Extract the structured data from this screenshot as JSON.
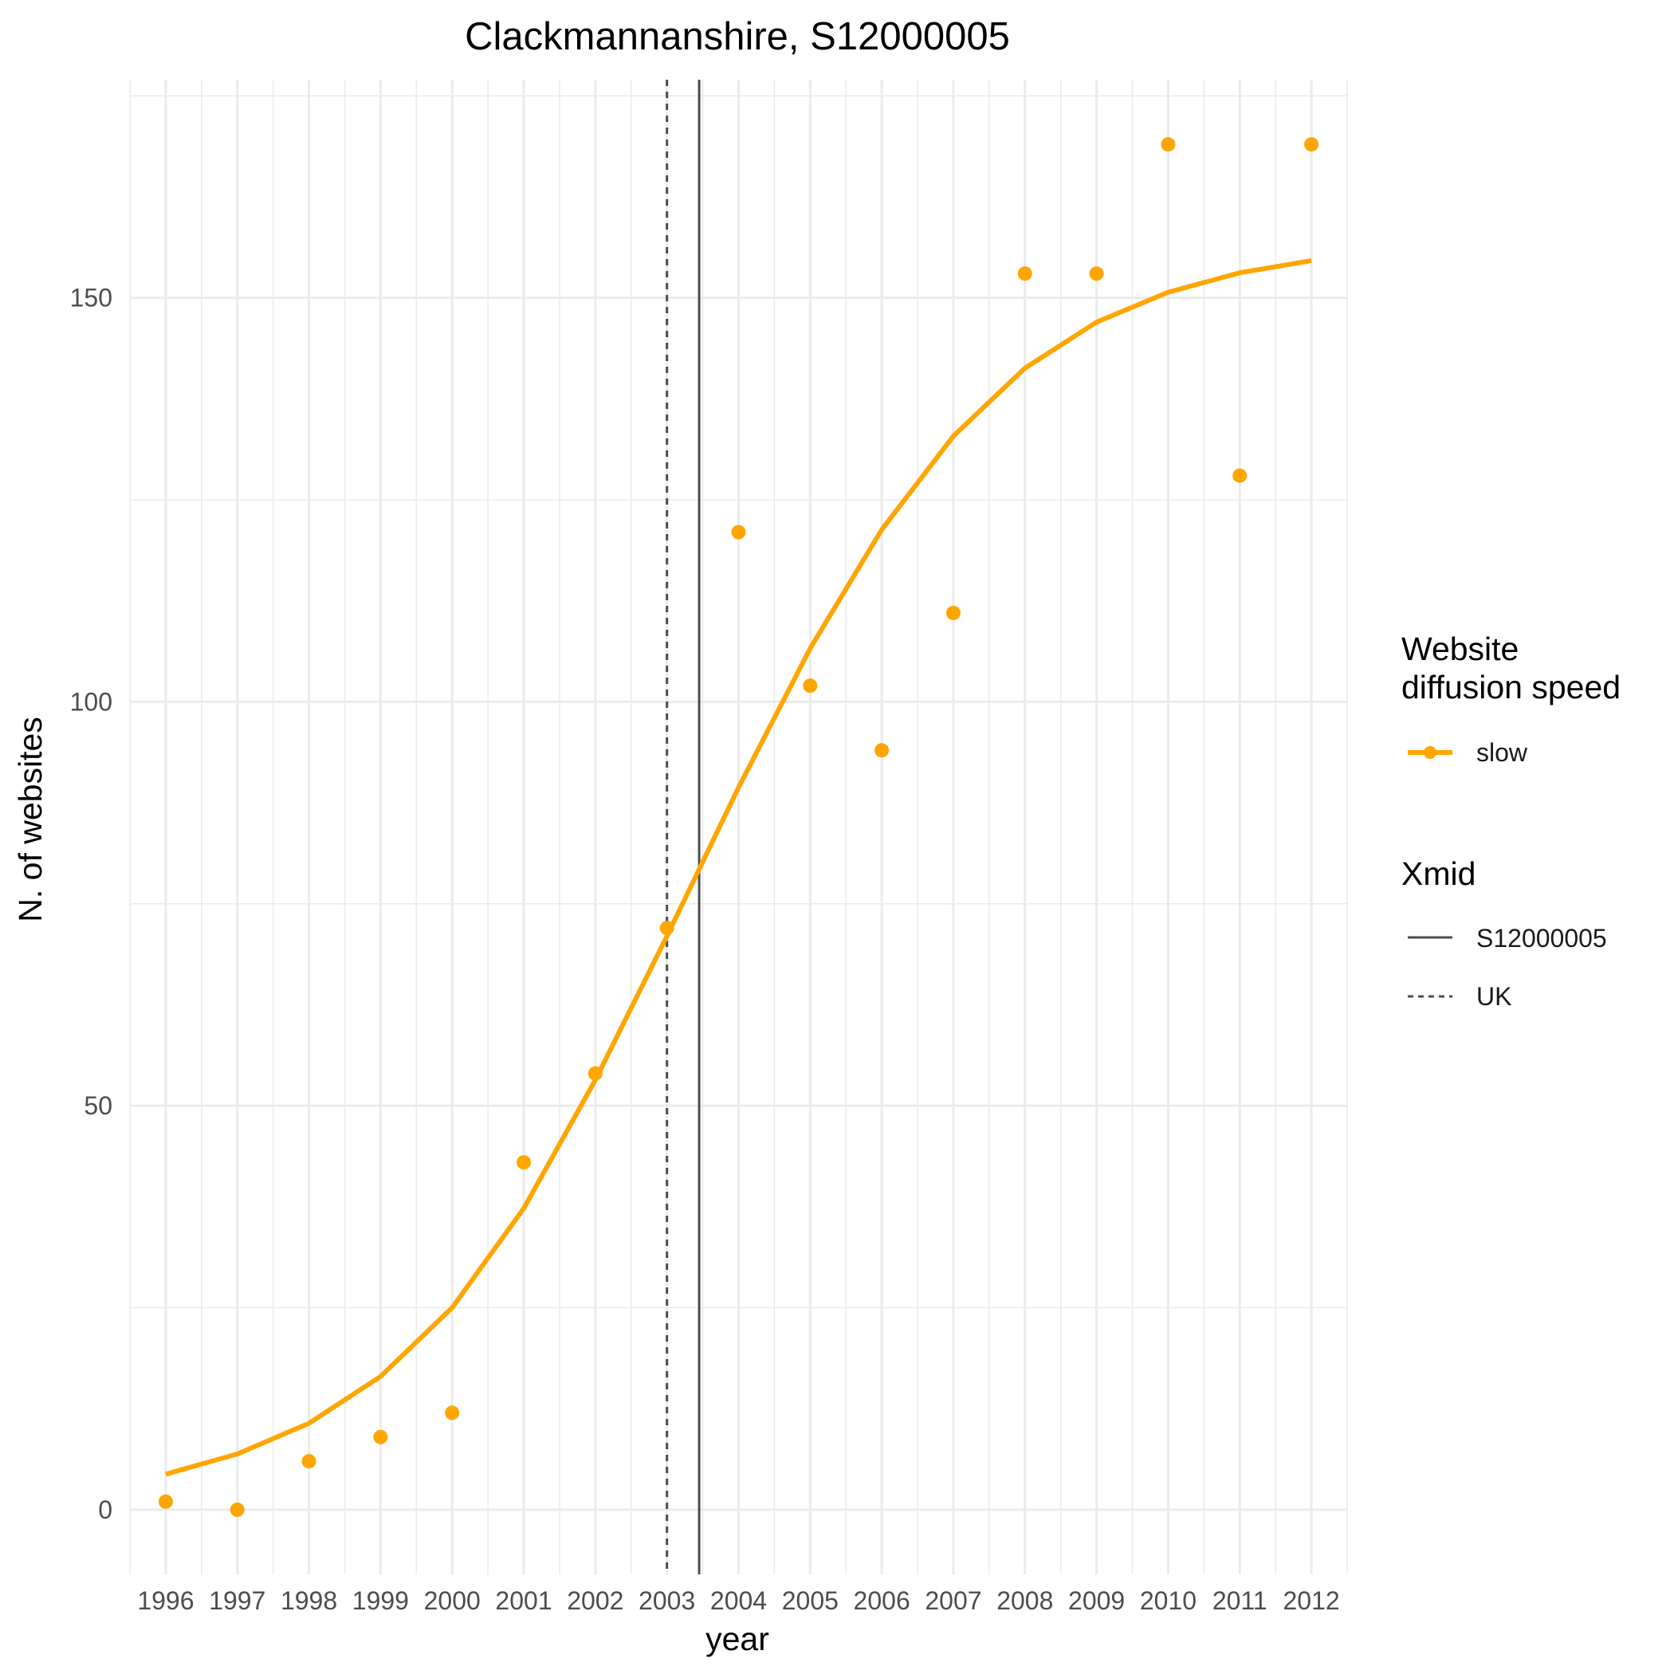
{
  "chart_data": {
    "type": "line",
    "title": "Clackmannanshire, S12000005",
    "xlabel": "year",
    "ylabel": "N. of websites",
    "x": [
      1996,
      1997,
      1998,
      1999,
      2000,
      2001,
      2002,
      2003,
      2004,
      2005,
      2006,
      2007,
      2008,
      2009,
      2010,
      2011,
      2012
    ],
    "xlim": [
      1995.5,
      2012.5
    ],
    "ylim": [
      -8,
      177
    ],
    "yticks": [
      0,
      50,
      100,
      150
    ],
    "grid": true,
    "legend_position": "right",
    "series": [
      {
        "name": "slow",
        "kind": "points",
        "color": "#FFA500",
        "values": [
          1,
          0,
          6,
          9,
          12,
          43,
          54,
          72,
          121,
          102,
          94,
          111,
          153,
          153,
          169,
          128,
          169
        ]
      },
      {
        "name": "slow",
        "kind": "fitted-line",
        "color": "#FFA500",
        "values": [
          4.4,
          6.9,
          10.7,
          16.5,
          25.0,
          37.3,
          53.2,
          71.0,
          89.4,
          106.6,
          121.3,
          132.9,
          141.3,
          147.0,
          150.7,
          153.1,
          154.6
        ]
      }
    ],
    "reference_lines": [
      {
        "name": "S12000005",
        "x": 2003.45,
        "style": "solid",
        "color": "#4d4d4d"
      },
      {
        "name": "UK",
        "x": 2003.0,
        "style": "dashed",
        "color": "#4d4d4d"
      }
    ],
    "legends": [
      {
        "title": "Website\ndiffusion speed",
        "title_lines": [
          "Website",
          "diffusion speed"
        ],
        "entries": [
          "slow"
        ]
      },
      {
        "title": "Xmid",
        "entries": [
          "S12000005",
          "UK"
        ]
      }
    ]
  }
}
